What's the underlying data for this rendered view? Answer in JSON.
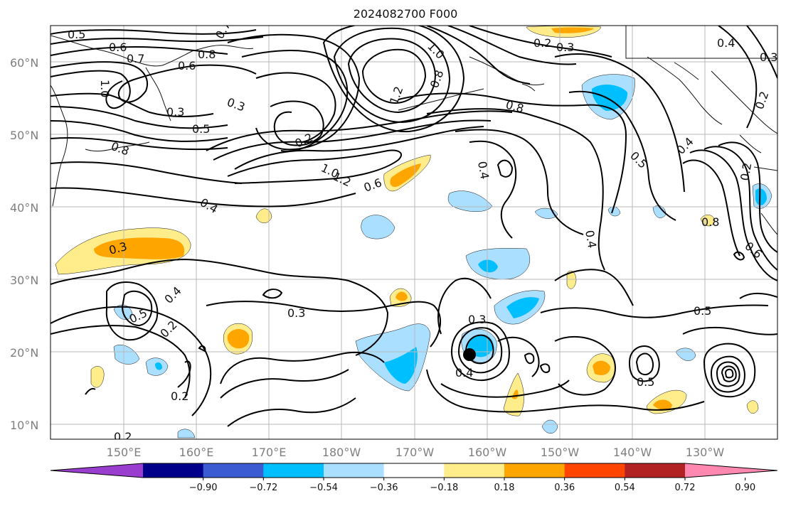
{
  "title": "2024082700 F000",
  "lat_labels": [
    "60°N",
    "50°N",
    "40°N",
    "30°N",
    "20°N",
    "10°N"
  ],
  "lon_labels": [
    "150°E",
    "160°E",
    "170°E",
    "180°W",
    "170°W",
    "160°W",
    "150°W",
    "140°W",
    "130°W"
  ],
  "colorbar": {
    "colors": [
      "#9a3ed0",
      "#00008b",
      "#3a5bd1",
      "#00bfff",
      "#aadfff",
      "#ffffff",
      "#ffec8b",
      "#ffa500",
      "#ff4500",
      "#b22222",
      "#ff88b0"
    ],
    "tick_labels": [
      "−0.90",
      "−0.72",
      "−0.54",
      "−0.36",
      "−0.18",
      "0.18",
      "0.36",
      "0.54",
      "0.72",
      "0.90"
    ]
  },
  "contour_labels": [
    "0.5",
    "0.6",
    "0.7",
    "0.8",
    "0.6",
    "0.7",
    "1.0",
    "0.3",
    "0.5",
    "0.8",
    "0.3",
    "0.2",
    "1.0",
    "1.2",
    "0.6",
    "0.4",
    "1.0",
    "0.8",
    "1.2",
    "0.2",
    "0.3",
    "0.8",
    "0.4",
    "0.5",
    "0.4",
    "0.4",
    "0.2",
    "0.3",
    "0.8",
    "0.6",
    "0.3",
    "0.5",
    "0.4",
    "0.2",
    "0.2",
    "0.3",
    "0.4",
    "0.3",
    "0.4",
    "0.5",
    "0.5",
    "0.2",
    "0.2"
  ]
}
